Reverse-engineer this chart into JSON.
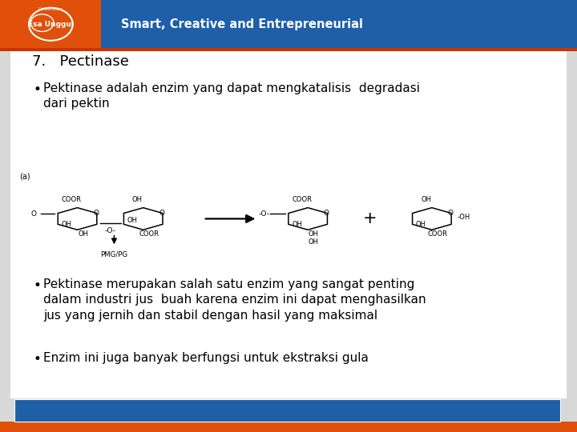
{
  "title": "7.   Pectinase",
  "bullet1": "Pektinase adalah enzim yang dapat mengkatalisis  degradasi\ndari pektin",
  "bullet2": "Pektinase merupakan salah satu enzim yang sangat penting\ndalam industri jus  buah karena enzim ini dapat menghasilkan\njus yang jernih dan stabil dengan hasil yang maksimal",
  "bullet3": "Enzim ini juga banyak berfungsi untuk ekstraksi gula",
  "header_bg_blue": "#1e5fa8",
  "header_bg_orange": "#e0500a",
  "header_text": "Smart, Creative and Entrepreneurial",
  "footer_bg_blue": "#1e5fa8",
  "footer_bg_orange": "#e0500a",
  "body_bg": "#d8d8d8",
  "slide_bg": "#ffffff",
  "text_color": "#000000",
  "title_fontsize": 13,
  "body_fontsize": 11
}
